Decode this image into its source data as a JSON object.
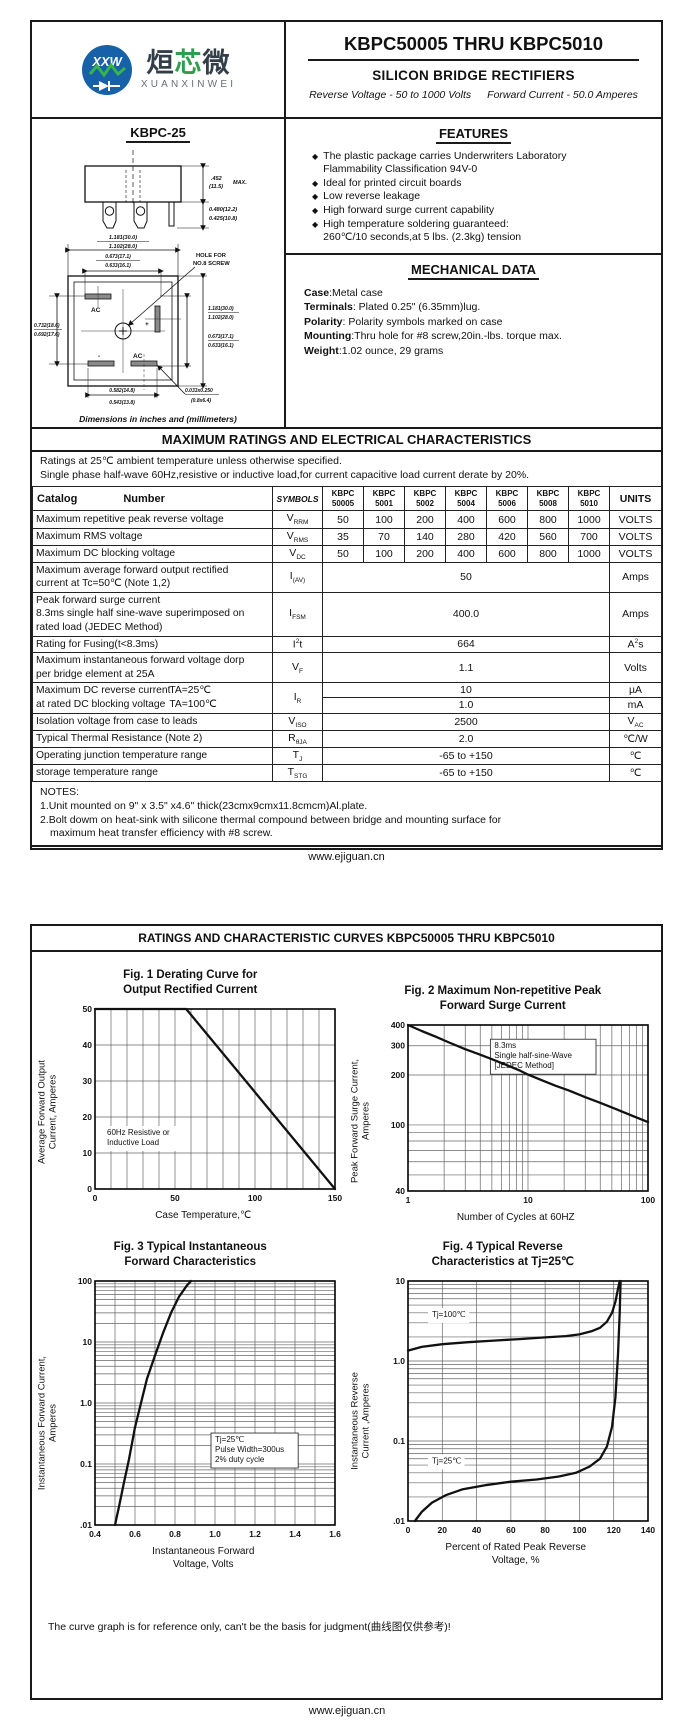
{
  "doc": {
    "header": {
      "logo_monogram": "XXW",
      "brand_chinese": [
        "烜",
        "芯",
        "微"
      ],
      "brand_latin": "XUANXINWEI",
      "title": "KBPC50005 THRU KBPC5010",
      "subtitle": "SILICON BRIDGE RECTIFIERS",
      "tagline_left": "Reverse Voltage - 50 to 1000 Volts",
      "tagline_right": "Forward Current - 50.0 Amperes"
    },
    "footer_url": "www.ejiguan.cn",
    "accent_blue": "#1761a8",
    "accent_green": "#2f9e4c"
  },
  "drawing": {
    "package": "KBPC-25",
    "fv_h1": ".452",
    "fv_h2": "(11.5)",
    "fv_max": "MAX.",
    "fv_t1": "0.480(12.2)",
    "fv_t2": "0.425(10.8)",
    "w1a": "1.181(30.0)",
    "w1b": "1.102(28.0)",
    "w2a": "0.673(17.1)",
    "w2b": "0.633(16.1)",
    "hole1": "HOLE FOR",
    "hole2": "NO.8 SCREW",
    "l1a": "0.732(18.6)",
    "l1b": "0.692(17.6)",
    "r1a": "1.181(30.0)",
    "r1b": "1.102(28.0)",
    "r2a": "0.673(17.1)",
    "r2b": "0.633(16.1)",
    "b1a": "0.582(14.8)",
    "b1b": "0.543(13.8)",
    "s1a": "0.033x0.250",
    "s1b": "(0.8x6.4)",
    "ac1": "AC",
    "plus": "+",
    "minus": "-",
    "ac2": "AC",
    "caption": "Dimensions in inches and (millimeters)"
  },
  "features": {
    "title": "FEATURES",
    "bullet": "◆",
    "items": [
      [
        "The plastic package carries Underwriters Laboratory",
        "Flammability Classification 94V-0"
      ],
      [
        "Ideal for printed circuit boards"
      ],
      [
        "Low reverse leakage"
      ],
      [
        "High forward surge current capability"
      ],
      [
        "High temperature soldering guaranteed:",
        "260℃/10 seconds,at 5 lbs. (2.3kg) tension"
      ]
    ]
  },
  "mechanical": {
    "title": "MECHANICAL DATA",
    "items": [
      [
        "Case",
        ":Metal case"
      ],
      [
        "Terminals",
        ": Plated 0.25\"   (6.35mm)lug."
      ],
      [
        "Polarity",
        ": Polarity symbols marked on case"
      ],
      [
        "Mounting",
        ":Thru hole for #8 screw,20in.-lbs. torque max."
      ],
      [
        "Weight",
        ":1.02 ounce, 29 grams"
      ]
    ]
  },
  "ratings_banner": "MAXIMUM RATINGS AND ELECTRICAL CHARACTERISTICS",
  "ratings_notes": [
    "Ratings at 25℃ ambient temperature unless otherwise specified.",
    "Single phase half-wave 60Hz,resistive or inductive load,for current capacitive load current derate by 20%."
  ],
  "table": {
    "header": {
      "catalog": "Catalog",
      "number": "Number",
      "symbols": "SYMBOLS",
      "parts": [
        [
          "KBPC",
          "50005"
        ],
        [
          "KBPC",
          "5001"
        ],
        [
          "KBPC",
          "5002"
        ],
        [
          "KBPC",
          "5004"
        ],
        [
          "KBPC",
          "5006"
        ],
        [
          "KBPC",
          "5008"
        ],
        [
          "KBPC",
          "5010"
        ]
      ],
      "units": "UNITS"
    },
    "rows": [
      {
        "label": [
          "Maximum repetitive peak reverse voltage"
        ],
        "sym": {
          "t": "V",
          "sub": "RRM"
        },
        "type": "vals",
        "vals": [
          "50",
          "100",
          "200",
          "400",
          "600",
          "800",
          "1000"
        ],
        "unit": {
          "t": "VOLTS"
        }
      },
      {
        "label": [
          "Maximum RMS voltage"
        ],
        "sym": {
          "t": "V",
          "sub": "RMS"
        },
        "type": "vals",
        "vals": [
          "35",
          "70",
          "140",
          "280",
          "420",
          "560",
          "700"
        ],
        "unit": {
          "t": "VOLTS"
        }
      },
      {
        "label": [
          "Maximum DC blocking voltage"
        ],
        "sym": {
          "t": "V",
          "sub": "DC"
        },
        "type": "vals",
        "vals": [
          "50",
          "100",
          "200",
          "400",
          "600",
          "800",
          "1000"
        ],
        "unit": {
          "t": "VOLTS"
        }
      },
      {
        "label": [
          "Maximum average forward output rectified",
          "current at  Tc=50℃ (Note 1,2)"
        ],
        "sym": {
          "t": "I",
          "sub": "(AV)"
        },
        "type": "span",
        "val": "50",
        "unit": {
          "t": "Amps"
        }
      },
      {
        "label": [
          "Peak forward surge current",
          "8.3ms single half sine-wave superimposed on",
          "rated load (JEDEC Method)"
        ],
        "sym": {
          "t": "I",
          "sub": "FSM"
        },
        "type": "span",
        "val": "400.0",
        "unit": {
          "t": "Amps"
        }
      },
      {
        "label": [
          "Rating for Fusing(t<8.3ms)"
        ],
        "sym": {
          "t": "I",
          "sup": "2",
          "t2": "t"
        },
        "type": "span",
        "val": "664",
        "unit": {
          "t": "A",
          "sup": "2",
          "t2": "s"
        }
      },
      {
        "label": [
          "Maximum instantaneous forward voltage dorp",
          "per bridge element at 25A"
        ],
        "sym": {
          "t": "V",
          "sub": "F"
        },
        "type": "span",
        "val": "1.1",
        "unit": {
          "t": "Volts"
        }
      },
      {
        "label": [
          [
            "Maximum DC reverse current",
            "TA=25℃"
          ],
          [
            "at rated DC blocking voltage",
            "TA=100℃"
          ]
        ],
        "sym": {
          "t": "I",
          "sub": "R"
        },
        "type": "dual",
        "vals": [
          "10",
          "1.0"
        ],
        "units": [
          {
            "t": "µA"
          },
          {
            "t": "mA"
          }
        ]
      },
      {
        "label": [
          "Isolation voltage from case to leads"
        ],
        "sym": {
          "t": "V",
          "sub": "ISO"
        },
        "type": "span",
        "val": "2500",
        "unit": {
          "t": "V",
          "sub": "AC"
        }
      },
      {
        "label": [
          "Typical Thermal Resistance (Note 2)"
        ],
        "sym": {
          "t": "R",
          "sub": "θJA"
        },
        "type": "span",
        "val": "2.0",
        "unit": {
          "t": "℃/W"
        }
      },
      {
        "label": [
          "Operating junction temperature range"
        ],
        "sym": {
          "t": "T",
          "sub": "J"
        },
        "type": "span",
        "val": "-65 to +150",
        "unit": {
          "t": "℃"
        }
      },
      {
        "label": [
          "storage temperature range"
        ],
        "sym": {
          "t": "T",
          "sub": "STG"
        },
        "type": "span",
        "val": "-65 to +150",
        "unit": {
          "t": "℃"
        }
      }
    ]
  },
  "notes": {
    "title": "NOTES:",
    "lines": [
      "1.Unit mounted on 9\"  x 3.5\"  x4.6\"  thick(23cmx9cmx11.8cmcm)Al.plate.",
      "2.Bolt dowm on heat-sink with silicone thermal compound between bridge and mounting surface for"
    ],
    "indent_line": "maximum heat transfer efficiency with #8 screw."
  },
  "page2": {
    "banner": "RATINGS AND CHARACTERISTIC CURVES KBPC50005 THRU KBPC5010",
    "disclaimer": "The curve graph is for reference only, can't be the basis for judgment(曲线图仅供参考)!"
  },
  "chart_data": [
    {
      "id": "fig1",
      "type": "line",
      "title_lines": [
        "Fig. 1 Derating Curve for",
        "Output Rectified Current"
      ],
      "ylabel_lines": [
        "Average Forward Output",
        "Current, Amperes"
      ],
      "xlabel_lines": [
        "Case Temperature,℃"
      ],
      "xscale": "linear",
      "xlim": [
        0,
        150
      ],
      "xminor": 10,
      "xticks": [
        0,
        50,
        100,
        150
      ],
      "xtick_labels": [
        "0",
        "50",
        "100",
        "150"
      ],
      "yscale": "linear",
      "ylim": [
        0,
        50
      ],
      "yminor": 10,
      "yticks": [
        0,
        10,
        20,
        30,
        40,
        50
      ],
      "ytick_labels": [
        "0",
        "10",
        "20",
        "30",
        "40",
        "50"
      ],
      "series": [
        {
          "name": "derating curve",
          "points": [
            [
              0,
              50
            ],
            [
              57,
              50
            ],
            [
              150,
              0
            ]
          ]
        }
      ],
      "annotations": [
        {
          "fx": 0.05,
          "fy": 0.7,
          "lines": [
            "60Hz Resistive or",
            "Inductive Load"
          ],
          "boxed": false
        }
      ]
    },
    {
      "id": "fig2",
      "type": "line",
      "title_lines": [
        "Fig. 2 Maximum Non-repetitive Peak",
        "Forward Surge Current"
      ],
      "ylabel_lines": [
        "Peak Forward Surge Current,",
        "Amperes"
      ],
      "xlabel_lines": [
        "Number of Cycles at 60HZ"
      ],
      "xscale": "log",
      "xlim": [
        1,
        100
      ],
      "xticks": [
        1,
        10,
        100
      ],
      "xtick_labels": [
        "1",
        "10",
        "100"
      ],
      "yscale": "log",
      "ylim": [
        40,
        400
      ],
      "yticks": [
        40,
        100,
        200,
        300,
        400
      ],
      "ytick_labels": [
        "40",
        "100",
        "200",
        "300",
        "400"
      ],
      "series": [
        {
          "name": "surge current",
          "points": [
            [
              1,
              400
            ],
            [
              1.3,
              368
            ],
            [
              1.7,
              340
            ],
            [
              2.2,
              314
            ],
            [
              3,
              286
            ],
            [
              4,
              265
            ],
            [
              5,
              249
            ],
            [
              6.5,
              231
            ],
            [
              8.5,
              213
            ],
            [
              10,
              201
            ],
            [
              13,
              186
            ],
            [
              17,
              172
            ],
            [
              22,
              161
            ],
            [
              30,
              147
            ],
            [
              40,
              136
            ],
            [
              55,
              124
            ],
            [
              75,
              113
            ],
            [
              100,
              104
            ]
          ]
        }
      ],
      "annotations": [
        {
          "fx": 0.36,
          "fy": 0.14,
          "lines": [
            "8.3ms",
            "Single half-sine-Wave",
            "[JEDEC Method]"
          ],
          "boxed": true
        }
      ]
    },
    {
      "id": "fig3",
      "type": "line",
      "title_lines": [
        "Fig. 3 Typical Instantaneous",
        "Forward Characteristics"
      ],
      "ylabel_lines": [
        "Instantaneous Forward Current,",
        "Amperes"
      ],
      "xlabel_lines": [
        "Instantaneous Forward",
        "Voltage, Volts"
      ],
      "xscale": "linear",
      "xlim": [
        0.4,
        1.6
      ],
      "xminor": 0.1,
      "xticks": [
        0.4,
        0.6,
        0.8,
        1.0,
        1.2,
        1.4,
        1.6
      ],
      "xtick_labels": [
        "0.4",
        "0.6",
        "0.8",
        "1.0",
        "1.2",
        "1.4",
        "1.6"
      ],
      "yscale": "log",
      "ylim": [
        0.01,
        100
      ],
      "yticks": [
        0.01,
        0.1,
        1,
        10,
        100
      ],
      "ytick_labels": [
        ".01",
        "0.1",
        "1.0",
        "10",
        "100"
      ],
      "series": [
        {
          "name": "Tj=25℃",
          "points": [
            [
              0.5,
              0.01
            ],
            [
              0.52,
              0.02
            ],
            [
              0.545,
              0.05
            ],
            [
              0.57,
              0.12
            ],
            [
              0.6,
              0.4
            ],
            [
              0.63,
              1.0
            ],
            [
              0.66,
              2.5
            ],
            [
              0.7,
              6.0
            ],
            [
              0.74,
              14
            ],
            [
              0.78,
              30
            ],
            [
              0.82,
              55
            ],
            [
              0.86,
              85
            ],
            [
              0.88,
              100
            ]
          ]
        }
      ],
      "annotations": [
        {
          "fx": 0.5,
          "fy": 0.66,
          "lines": [
            "Tj=25℃",
            "Pulse Width=300us",
            "2% duty cycle"
          ],
          "boxed": true
        }
      ]
    },
    {
      "id": "fig4",
      "type": "line",
      "title_lines": [
        "Fig. 4 Typical Reverse",
        "Characteristics at Tj=25℃"
      ],
      "ylabel_lines": [
        "Instantaneous Reverse",
        "Current ,Amperes"
      ],
      "xlabel_lines": [
        "Percent of Rated Peak  Reverse",
        "Voltage, %"
      ],
      "xscale": "linear",
      "xlim": [
        0,
        140
      ],
      "xminor": 20,
      "xticks": [
        0,
        20,
        40,
        60,
        80,
        100,
        120,
        140
      ],
      "xtick_labels": [
        "0",
        "20",
        "40",
        "60",
        "80",
        "100",
        "120",
        "140"
      ],
      "yscale": "log",
      "ylim": [
        0.01,
        10
      ],
      "yticks": [
        0.01,
        0.1,
        1,
        10
      ],
      "ytick_labels": [
        ".01",
        "0.1",
        "1.0",
        "10"
      ],
      "series": [
        {
          "name": "Tj=100℃",
          "points": [
            [
              0,
              1.35
            ],
            [
              8,
              1.5
            ],
            [
              20,
              1.62
            ],
            [
              35,
              1.72
            ],
            [
              50,
              1.8
            ],
            [
              65,
              1.88
            ],
            [
              80,
              1.97
            ],
            [
              92,
              2.05
            ],
            [
              100,
              2.15
            ],
            [
              107,
              2.35
            ],
            [
              112,
              2.6
            ],
            [
              116,
              3.1
            ],
            [
              119,
              4.0
            ],
            [
              121,
              5.5
            ],
            [
              122.5,
              8.0
            ],
            [
              123.5,
              10
            ]
          ]
        },
        {
          "name": "Tj=25℃",
          "points": [
            [
              4,
              0.01
            ],
            [
              8,
              0.013
            ],
            [
              14,
              0.017
            ],
            [
              22,
              0.021
            ],
            [
              32,
              0.025
            ],
            [
              45,
              0.028
            ],
            [
              60,
              0.031
            ],
            [
              75,
              0.033
            ],
            [
              88,
              0.036
            ],
            [
              98,
              0.04
            ],
            [
              106,
              0.048
            ],
            [
              112,
              0.06
            ],
            [
              116,
              0.085
            ],
            [
              119,
              0.15
            ],
            [
              121,
              0.35
            ],
            [
              122.5,
              1.2
            ],
            [
              123.5,
              4.0
            ],
            [
              124,
              10
            ]
          ]
        }
      ],
      "annotations": [
        {
          "fx": 0.1,
          "fy": 0.15,
          "lines": [
            "Tj=100℃"
          ],
          "boxed": false
        },
        {
          "fx": 0.1,
          "fy": 0.76,
          "lines": [
            "Tj=25℃"
          ],
          "boxed": false
        }
      ]
    }
  ]
}
